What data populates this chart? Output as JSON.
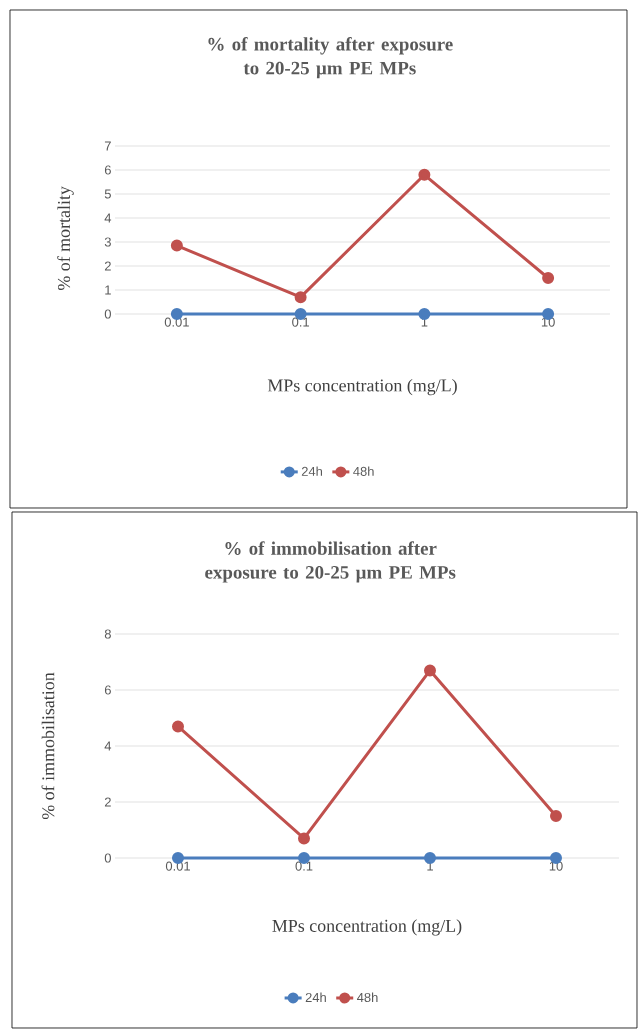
{
  "chart_data": [
    {
      "type": "line",
      "title": "% of mortality after exposure to 20-25 µm PE MPs",
      "xlabel": "MPs concentration (mg/L)",
      "ylabel": "% of mortality",
      "categories": [
        "0.01",
        "0.1",
        "1",
        "10"
      ],
      "series": [
        {
          "name": "24h",
          "color": "#4a7dbd",
          "values": [
            0,
            0,
            0,
            0
          ]
        },
        {
          "name": "48h",
          "color": "#c0504d",
          "values": [
            2.85,
            0.7,
            5.8,
            1.5
          ]
        }
      ],
      "ylim": [
        0,
        7
      ],
      "yticks": [
        0,
        1,
        2,
        3,
        4,
        5,
        6,
        7
      ],
      "grid": "y",
      "legend": "bottom",
      "marker": "circle"
    },
    {
      "type": "line",
      "title": "% of immobilisation after exposure to 20-25 µm PE MPs",
      "xlabel": "MPs concentration (mg/L)",
      "ylabel": "% of immobilisation",
      "categories": [
        "0.01",
        "0.1",
        "1",
        "10"
      ],
      "series": [
        {
          "name": "24h",
          "color": "#4a7dbd",
          "values": [
            0,
            0,
            0,
            0
          ]
        },
        {
          "name": "48h",
          "color": "#c0504d",
          "values": [
            4.7,
            0.7,
            6.7,
            1.5
          ]
        }
      ],
      "ylim": [
        0,
        8
      ],
      "yticks": [
        0,
        2,
        4,
        6,
        8
      ],
      "grid": "y",
      "legend": "bottom",
      "marker": "circle"
    }
  ]
}
